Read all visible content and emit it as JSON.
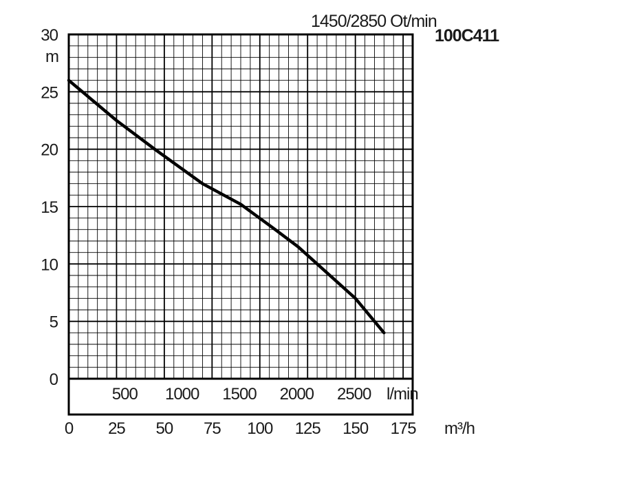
{
  "chart_data": {
    "type": "line",
    "speed_label": "1450/2850 Ot/min",
    "model": "100C411",
    "y_unit": "m",
    "ylim": [
      0,
      30
    ],
    "y_ticks": [
      "0",
      "5",
      "10",
      "15",
      "20",
      "25",
      "30"
    ],
    "y_tick_values": [
      0,
      5,
      10,
      15,
      20,
      25,
      30
    ],
    "x_unit_lmin": "l/min",
    "lmin_ticks": [
      "500",
      "1000",
      "1500",
      "2000",
      "2500"
    ],
    "lmin_tick_values": [
      500,
      1000,
      1500,
      2000,
      2500
    ],
    "x_unit_m3h": "m³/h",
    "xlim_m3h": [
      0,
      180
    ],
    "m3h_ticks": [
      "0",
      "25",
      "50",
      "75",
      "100",
      "125",
      "150",
      "175"
    ],
    "m3h_tick_values": [
      0,
      25,
      50,
      75,
      100,
      125,
      150,
      175
    ],
    "grid": true,
    "series": [
      {
        "color": "#000000",
        "x": [
          0,
          25,
          45,
          70,
          90,
          108,
          120,
          130,
          150,
          165
        ],
        "y": [
          26,
          22.5,
          20,
          17,
          15.2,
          13,
          11.5,
          10,
          7,
          4
        ]
      }
    ]
  }
}
